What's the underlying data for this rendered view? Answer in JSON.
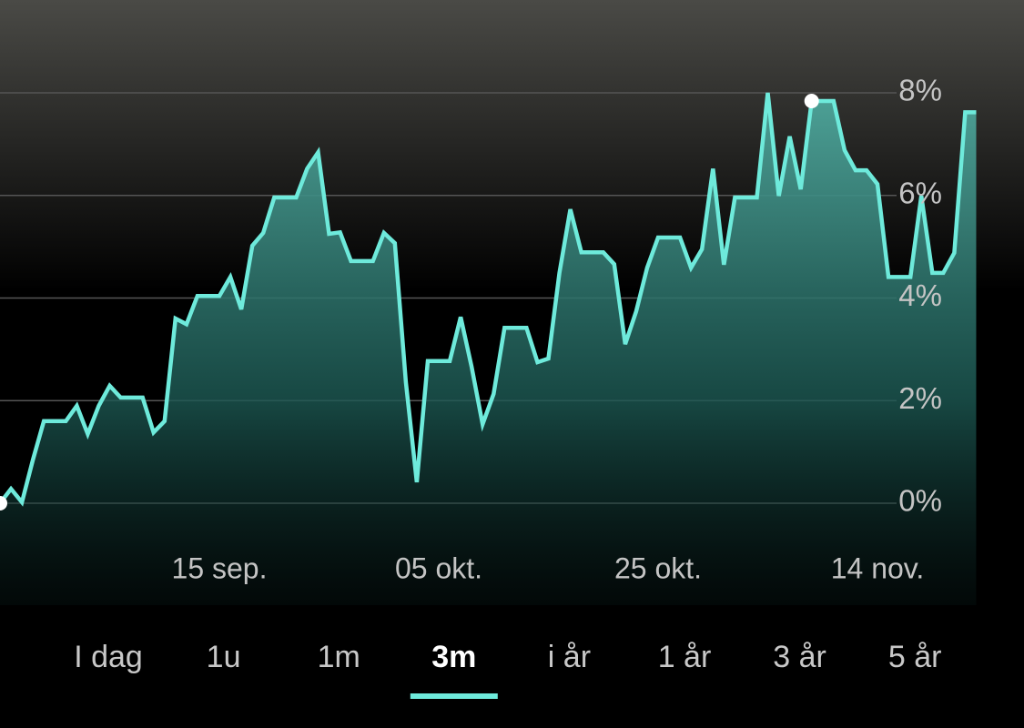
{
  "chart_data": {
    "type": "area",
    "categories": [
      null,
      null,
      null,
      null,
      null,
      null,
      null,
      null,
      null,
      null,
      null,
      null,
      null,
      null,
      null,
      null,
      null,
      null,
      null,
      null,
      "15 sep.",
      null,
      null,
      null,
      null,
      null,
      null,
      null,
      null,
      null,
      null,
      null,
      null,
      null,
      null,
      null,
      null,
      null,
      null,
      null,
      "05 okt.",
      null,
      null,
      null,
      null,
      null,
      null,
      null,
      null,
      null,
      null,
      null,
      null,
      null,
      null,
      null,
      null,
      null,
      null,
      null,
      "25 okt.",
      null,
      null,
      null,
      null,
      null,
      null,
      null,
      null,
      null,
      null,
      null,
      null,
      null,
      null,
      null,
      null,
      null,
      null,
      null,
      "14 nov.",
      null,
      null,
      null,
      null,
      null,
      null,
      null,
      null,
      null
    ],
    "values": [
      0,
      0.28,
      0.02,
      0.85,
      1.6,
      1.6,
      1.6,
      1.9,
      1.35,
      1.9,
      2.29,
      2.06,
      2.06,
      2.06,
      1.38,
      1.6,
      3.6,
      3.49,
      4.04,
      4.04,
      4.04,
      4.41,
      3.78,
      5.02,
      5.27,
      5.96,
      5.96,
      5.96,
      6.52,
      6.84,
      5.25,
      5.28,
      4.72,
      4.72,
      4.72,
      5.27,
      5.07,
      2.36,
      0.41,
      2.77,
      2.77,
      2.77,
      3.63,
      2.66,
      1.54,
      2.13,
      3.42,
      3.42,
      3.42,
      2.75,
      2.82,
      4.49,
      5.73,
      4.89,
      4.89,
      4.89,
      4.66,
      3.1,
      3.74,
      4.59,
      5.18,
      5.18,
      5.18,
      4.59,
      4.95,
      6.52,
      4.65,
      5.96,
      5.96,
      5.96,
      8.0,
      5.99,
      7.15,
      6.12,
      7.84,
      7.84,
      7.84,
      6.88,
      6.49,
      6.49,
      6.22,
      4.41,
      4.41,
      4.41,
      5.99,
      4.49,
      4.49,
      4.88,
      7.62,
      7.62
    ],
    "color": "#6eeadb",
    "ylim": [
      0,
      8
    ],
    "yticks": [
      {
        "value": 0,
        "label": "0%"
      },
      {
        "value": 2,
        "label": "2%"
      },
      {
        "value": 4,
        "label": "4%"
      },
      {
        "value": 6,
        "label": "6%"
      },
      {
        "value": 8,
        "label": "8%"
      }
    ],
    "grid": true
  },
  "tabs": {
    "items": [
      "I dag",
      "1u",
      "1m",
      "3m",
      "i år",
      "1 år",
      "3 år",
      "5 år"
    ],
    "selected": 3
  }
}
